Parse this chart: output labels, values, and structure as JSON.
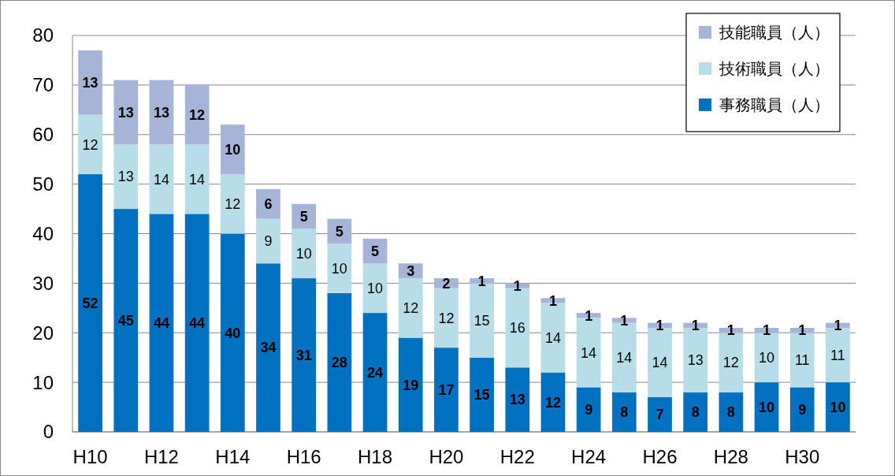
{
  "chart_data": {
    "type": "bar",
    "stacked": true,
    "categories": [
      "H10",
      null,
      "H12",
      null,
      "H14",
      null,
      "H16",
      null,
      "H18",
      null,
      "H20",
      null,
      "H22",
      null,
      "H24",
      null,
      "H26",
      null,
      "H28",
      null,
      "H30",
      null
    ],
    "series": [
      {
        "name": "事務職員（人）",
        "color": "#0070c0",
        "values": [
          52,
          45,
          44,
          44,
          40,
          34,
          31,
          28,
          24,
          19,
          17,
          15,
          13,
          12,
          9,
          8,
          7,
          8,
          8,
          10,
          9,
          10
        ]
      },
      {
        "name": "技術職員（人）",
        "color": "#b7dee8",
        "values": [
          12,
          13,
          14,
          14,
          12,
          9,
          10,
          10,
          10,
          12,
          12,
          15,
          16,
          14,
          14,
          14,
          14,
          13,
          12,
          10,
          11,
          11
        ]
      },
      {
        "name": "技能職員（人）",
        "color": "#a6b4d8",
        "values": [
          13,
          13,
          13,
          12,
          10,
          6,
          5,
          5,
          5,
          3,
          2,
          1,
          1,
          1,
          1,
          1,
          1,
          1,
          1,
          1,
          1,
          1
        ]
      }
    ],
    "ylim": [
      0,
      80
    ],
    "yticks": [
      0,
      10,
      20,
      30,
      40,
      50,
      60,
      70,
      80
    ],
    "grid": "y",
    "legend": "top right",
    "data_labels": true
  }
}
